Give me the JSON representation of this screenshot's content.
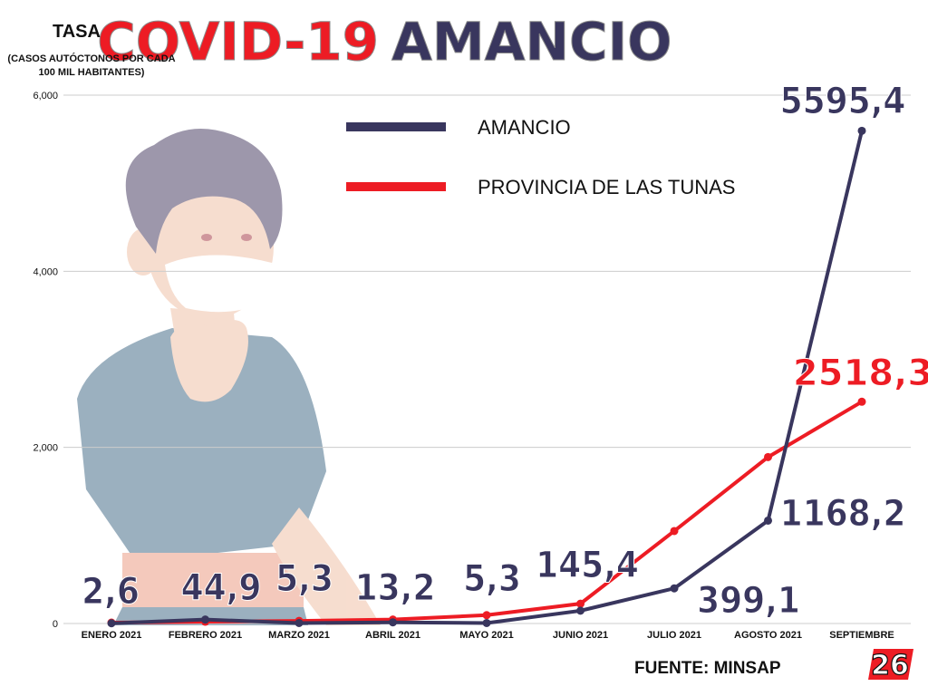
{
  "header": {
    "title_part1": "COVID-19",
    "title_part2": "AMANCIO"
  },
  "y_axis_title": "TASA",
  "y_axis_subtitle": "(CASOS AUTÓCTONOS POR CADA 100 MIL HABITANTES)",
  "source": "FUENTE: MINSAP",
  "logo_text": "26",
  "colors": {
    "amancio": "#39365e",
    "provincia": "#ed1c24",
    "grid": "#cccccc",
    "title_red": "#ed1c24",
    "title_navy": "#39365e"
  },
  "chart_data": {
    "type": "line",
    "categories": [
      "ENERO 2021",
      "FEBRERO 2021",
      "MARZO 2021",
      "ABRIL 2021",
      "MAYO 2021",
      "JUNIO 2021",
      "JULIO 2021",
      "AGOSTO 2021",
      "SEPTIEMBRE"
    ],
    "y_ticks": [
      "0",
      "2,000",
      "4,000",
      "6,000"
    ],
    "ylim": [
      0,
      6000
    ],
    "grid": true,
    "legend_placement": "top-center",
    "series": [
      {
        "name": "AMANCIO",
        "values": [
          2.6,
          44.9,
          5.3,
          13.2,
          5.3,
          145.4,
          399.1,
          1168.2,
          5595.4
        ],
        "labels": [
          "2,6",
          "44,9",
          "5,3",
          "13,2",
          "5,3",
          "145,4",
          "399,1",
          "1168,2",
          "5595,4"
        ]
      },
      {
        "name": "PROVINCIA DE LAS TUNAS",
        "values": [
          10,
          20,
          30,
          45,
          95,
          225,
          1050,
          1890,
          2518.3
        ],
        "labels": [
          "",
          "",
          "",
          "",
          "",
          "",
          "",
          "",
          "2518,3"
        ]
      }
    ]
  }
}
